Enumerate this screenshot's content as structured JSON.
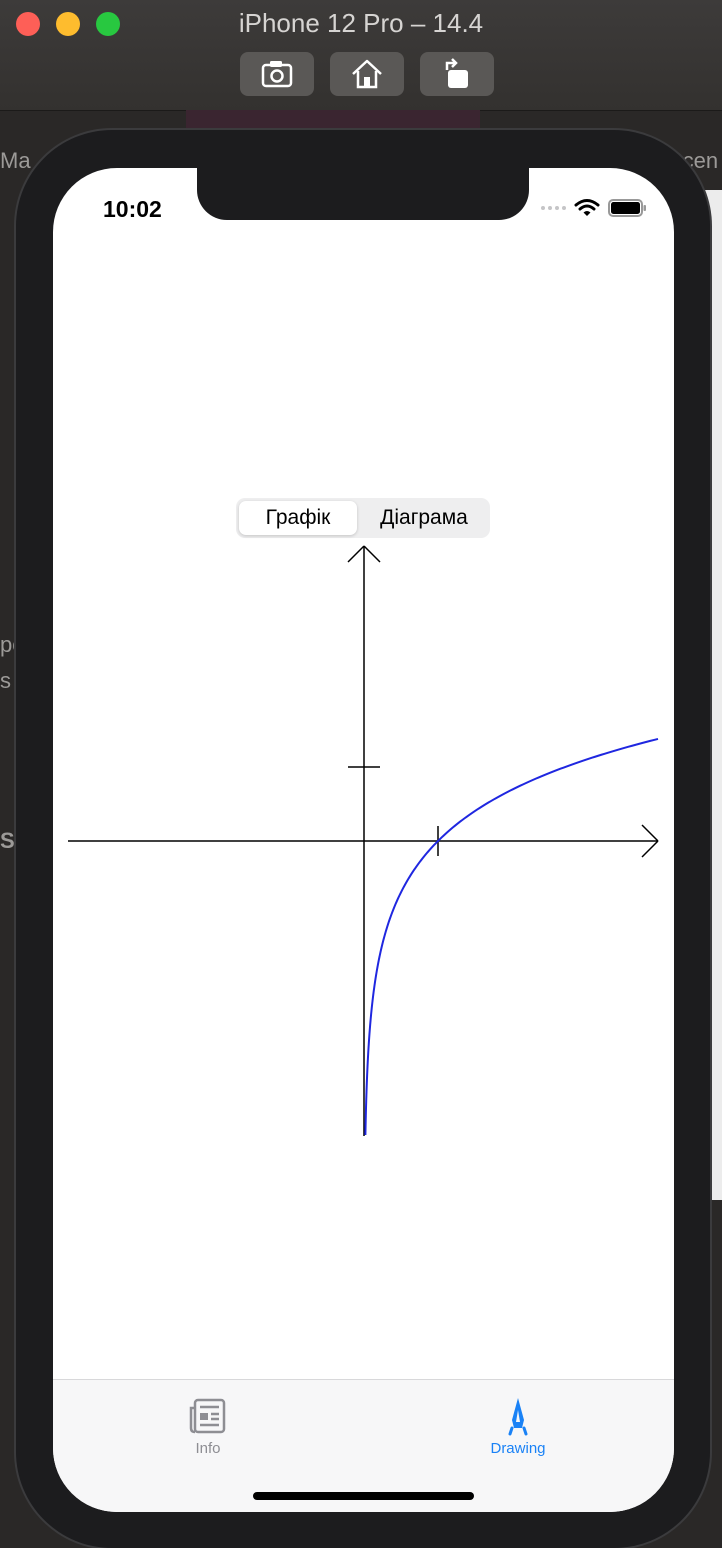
{
  "simulator": {
    "title": "iPhone 12 Pro – 14.4",
    "toolbar": [
      "screenshot-icon",
      "home-icon",
      "rotate-icon"
    ]
  },
  "status_bar": {
    "time": "10:02"
  },
  "segmented_control": {
    "options": [
      "Графік",
      "Діаграма"
    ],
    "selected": "Графік"
  },
  "graph": {
    "curve_color": "#1f27e0",
    "axes_color": "#000000",
    "x_tick_value": 1,
    "y_tick_value": 1,
    "plotted_function": "log(x)"
  },
  "tabbar": {
    "items": [
      {
        "label": "Info",
        "icon": "newspaper-icon",
        "active": false
      },
      {
        "label": "Drawing",
        "icon": "pen-nib-icon",
        "active": true
      }
    ],
    "active_color": "#1a82f6",
    "inactive_color": "#8e8e93"
  },
  "background_scraps": {
    "left_1": "Ma",
    "left_2": "po",
    "left_3": "s",
    "left_4": "Sc",
    "right_1": "Scen"
  }
}
